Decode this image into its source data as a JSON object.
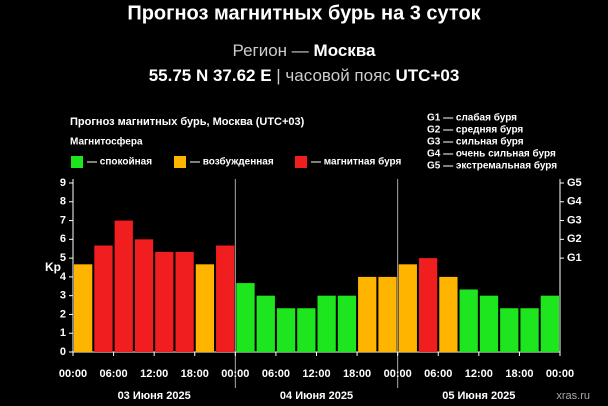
{
  "chart_data": {
    "type": "bar",
    "title": "Прогноз магнитных бурь на 3 суток",
    "region_label": "Регион —",
    "region": "Москва",
    "coords": "55.75 N 37.62 E",
    "tz_label": "| часовой пояс",
    "tz": "UTC+03",
    "chart_title": "Прогноз магнитных бурь, Москва (UTC+03)",
    "legend_title": "Магнитосфера",
    "legend": [
      {
        "name": "— спокойная",
        "color": "#1ee61e"
      },
      {
        "name": "— возбужденная",
        "color": "#ffb400"
      },
      {
        "name": "— магнитная буря",
        "color": "#f01e1e"
      }
    ],
    "g_legend": [
      "G1 — слабая буря",
      "G2 — средняя буря",
      "G3 — сильная буря",
      "G4 — очень сильная буря",
      "G5 — экстремальная буря"
    ],
    "y_label": "Kp",
    "watermark": "xras.ru",
    "x": [
      0,
      3,
      6,
      9,
      12,
      15,
      18,
      21,
      24,
      27,
      30,
      33,
      36,
      39,
      42,
      45,
      48,
      51,
      54,
      57,
      60,
      63,
      66,
      69
    ],
    "values": [
      4.67,
      5.67,
      7,
      6,
      5.33,
      5.33,
      4.67,
      5.67,
      3.67,
      3,
      2.33,
      2.33,
      3,
      3,
      4,
      4,
      4.67,
      5,
      4,
      3.33,
      3,
      2.33,
      2.33,
      3
    ],
    "colors": [
      "#ffb400",
      "#f01e1e",
      "#f01e1e",
      "#f01e1e",
      "#f01e1e",
      "#f01e1e",
      "#ffb400",
      "#f01e1e",
      "#1ee61e",
      "#1ee61e",
      "#1ee61e",
      "#1ee61e",
      "#1ee61e",
      "#1ee61e",
      "#ffb400",
      "#ffb400",
      "#ffb400",
      "#f01e1e",
      "#ffb400",
      "#1ee61e",
      "#1ee61e",
      "#1ee61e",
      "#1ee61e",
      "#1ee61e"
    ],
    "xlim": [
      0,
      72
    ],
    "xticks": [
      {
        "value": 0,
        "label": "00:00"
      },
      {
        "value": 6,
        "label": "06:00"
      },
      {
        "value": 12,
        "label": "12:00"
      },
      {
        "value": 18,
        "label": "18:00"
      },
      {
        "value": 24,
        "label": "00:00"
      },
      {
        "value": 30,
        "label": "06:00"
      },
      {
        "value": 36,
        "label": "12:00"
      },
      {
        "value": 42,
        "label": "18:00"
      },
      {
        "value": 48,
        "label": "00:00"
      },
      {
        "value": 54,
        "label": "06:00"
      },
      {
        "value": 60,
        "label": "12:00"
      },
      {
        "value": 66,
        "label": "18:00"
      },
      {
        "value": 72,
        "label": "00:00"
      }
    ],
    "day_labels": [
      "03 Июня 2025",
      "04 Июня 2025",
      "05 Июня 2025"
    ],
    "day_lines": [
      24,
      48
    ],
    "ylim": [
      0,
      9
    ],
    "yticks": [
      0,
      1,
      2,
      3,
      4,
      5,
      6,
      7,
      8,
      9
    ],
    "y2lim": [
      0,
      9
    ],
    "y2ticks": [
      {
        "value": 5,
        "label": "G1"
      },
      {
        "value": 6,
        "label": "G2"
      },
      {
        "value": 7,
        "label": "G3"
      },
      {
        "value": 8,
        "label": "G4"
      },
      {
        "value": 9,
        "label": "G5"
      }
    ]
  }
}
